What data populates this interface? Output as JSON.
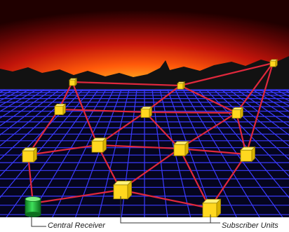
{
  "labels": {
    "central_receiver": "Central Receiver",
    "subscriber_units": "Subscriber Units"
  },
  "colors": {
    "sky_top": "#1a0000",
    "sky_glow": "#ff5a0a",
    "sun_core": "#ffd23a",
    "mountains": "#111111",
    "ground": "#050520",
    "grid": "#3a3aff",
    "link": "#e0283c",
    "unit_fill": "#ffe033",
    "unit_edge": "#a08a00",
    "receiver_fill": "#2ecc40",
    "receiver_edge": "#0a6a1a",
    "callout": "#333333"
  },
  "icons": {
    "subscriber_unit": "yellow-cube-icon",
    "central_receiver": "green-cylinder-icon"
  }
}
